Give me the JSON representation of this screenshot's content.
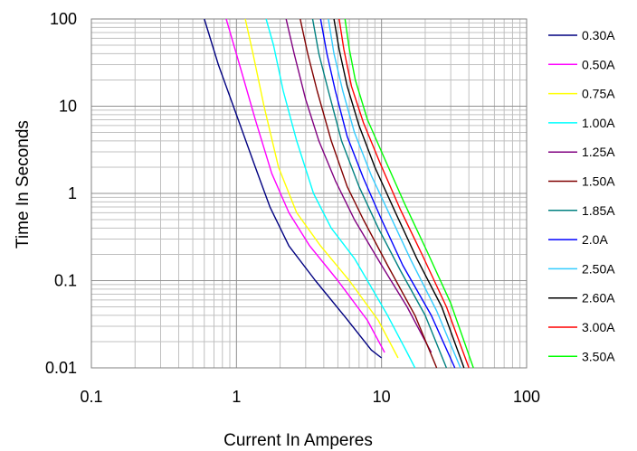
{
  "chart_data": {
    "type": "line",
    "title": "",
    "xlabel": "Current In Amperes",
    "ylabel": "Time In Seconds",
    "x_scale": "log",
    "y_scale": "log",
    "xlim": [
      0.1,
      100
    ],
    "ylim": [
      0.01,
      100
    ],
    "grid": true,
    "legend_position": "right",
    "x_ticks": [
      {
        "value": 0.1,
        "label": "0.1"
      },
      {
        "value": 1,
        "label": "1"
      },
      {
        "value": 10,
        "label": "10"
      },
      {
        "value": 100,
        "label": "100"
      }
    ],
    "y_ticks": [
      {
        "value": 100,
        "label": "100"
      },
      {
        "value": 10,
        "label": "10"
      },
      {
        "value": 1,
        "label": "1"
      },
      {
        "value": 0.1,
        "label": "0.1"
      },
      {
        "value": 0.01,
        "label": "0.01"
      }
    ],
    "series": [
      {
        "name": "0.30A",
        "color": "#000080",
        "points": [
          [
            0.6,
            100
          ],
          [
            0.75,
            30
          ],
          [
            1.0,
            8
          ],
          [
            1.35,
            2
          ],
          [
            1.7,
            0.7
          ],
          [
            2.3,
            0.25
          ],
          [
            3.5,
            0.1
          ],
          [
            5.5,
            0.04
          ],
          [
            8.5,
            0.016
          ],
          [
            10,
            0.013
          ]
        ]
      },
      {
        "name": "0.50A",
        "color": "#FF00FF",
        "points": [
          [
            0.85,
            100
          ],
          [
            1.05,
            30
          ],
          [
            1.35,
            7
          ],
          [
            1.75,
            1.7
          ],
          [
            2.3,
            0.6
          ],
          [
            3.2,
            0.25
          ],
          [
            5,
            0.1
          ],
          [
            8,
            0.035
          ],
          [
            10.5,
            0.015
          ]
        ]
      },
      {
        "name": "0.75A",
        "color": "#FFFF00",
        "points": [
          [
            1.15,
            100
          ],
          [
            1.3,
            40
          ],
          [
            1.55,
            10
          ],
          [
            1.95,
            2
          ],
          [
            2.6,
            0.6
          ],
          [
            3.8,
            0.25
          ],
          [
            6,
            0.1
          ],
          [
            9.5,
            0.035
          ],
          [
            13,
            0.013
          ]
        ]
      },
      {
        "name": "1.00A",
        "color": "#00FFFF",
        "points": [
          [
            1.6,
            100
          ],
          [
            1.8,
            50
          ],
          [
            2.1,
            15
          ],
          [
            2.6,
            4
          ],
          [
            3.4,
            1
          ],
          [
            4.5,
            0.4
          ],
          [
            6.5,
            0.18
          ],
          [
            8,
            0.1
          ],
          [
            11,
            0.04
          ],
          [
            15,
            0.015
          ],
          [
            17,
            0.01
          ]
        ]
      },
      {
        "name": "1.25A",
        "color": "#800080",
        "points": [
          [
            2.2,
            100
          ],
          [
            2.5,
            40
          ],
          [
            3.0,
            12
          ],
          [
            3.7,
            4
          ],
          [
            4.8,
            1.4
          ],
          [
            6.5,
            0.5
          ],
          [
            10,
            0.15
          ],
          [
            15,
            0.05
          ],
          [
            22,
            0.015
          ]
        ]
      },
      {
        "name": "1.50A",
        "color": "#800000",
        "points": [
          [
            2.75,
            100
          ],
          [
            3.1,
            40
          ],
          [
            3.6,
            15
          ],
          [
            4.5,
            4
          ],
          [
            5.8,
            1.2
          ],
          [
            7.5,
            0.5
          ],
          [
            11,
            0.15
          ],
          [
            17,
            0.04
          ],
          [
            24,
            0.01
          ]
        ]
      },
      {
        "name": "1.85A",
        "color": "#008080",
        "points": [
          [
            3.35,
            100
          ],
          [
            3.7,
            40
          ],
          [
            4.3,
            15
          ],
          [
            5.3,
            4
          ],
          [
            7,
            1.2
          ],
          [
            9.5,
            0.4
          ],
          [
            13.5,
            0.13
          ],
          [
            20,
            0.04
          ],
          [
            28,
            0.01
          ]
        ]
      },
      {
        "name": "2.0A",
        "color": "#0000FF",
        "points": [
          [
            3.8,
            100
          ],
          [
            4.2,
            40
          ],
          [
            4.8,
            15
          ],
          [
            5.8,
            4.5
          ],
          [
            7.5,
            1.5
          ],
          [
            10,
            0.5
          ],
          [
            14,
            0.15
          ],
          [
            22,
            0.04
          ],
          [
            32,
            0.01
          ]
        ]
      },
      {
        "name": "2.50A",
        "color": "#33CCFF",
        "points": [
          [
            4.3,
            100
          ],
          [
            4.7,
            40
          ],
          [
            5.4,
            15
          ],
          [
            6.5,
            5
          ],
          [
            8.5,
            1.6
          ],
          [
            11.5,
            0.55
          ],
          [
            16,
            0.17
          ],
          [
            24,
            0.045
          ],
          [
            35,
            0.01
          ]
        ]
      },
      {
        "name": "2.60A",
        "color": "#000000",
        "points": [
          [
            4.7,
            100
          ],
          [
            5.1,
            45
          ],
          [
            5.8,
            17
          ],
          [
            7,
            6
          ],
          [
            9,
            2
          ],
          [
            12.5,
            0.6
          ],
          [
            17.5,
            0.18
          ],
          [
            26,
            0.05
          ],
          [
            37,
            0.01
          ]
        ]
      },
      {
        "name": "3.00A",
        "color": "#FF0000",
        "points": [
          [
            5.1,
            100
          ],
          [
            5.5,
            45
          ],
          [
            6.2,
            17
          ],
          [
            7.5,
            6.5
          ],
          [
            9.8,
            2.2
          ],
          [
            13.5,
            0.65
          ],
          [
            19,
            0.2
          ],
          [
            28,
            0.05
          ],
          [
            40,
            0.01
          ]
        ]
      },
      {
        "name": "3.50A",
        "color": "#00FF00",
        "points": [
          [
            5.6,
            100
          ],
          [
            6.0,
            45
          ],
          [
            6.6,
            20
          ],
          [
            8,
            7
          ],
          [
            10.5,
            2.5
          ],
          [
            14.5,
            0.75
          ],
          [
            20.5,
            0.22
          ],
          [
            30,
            0.055
          ],
          [
            43,
            0.01
          ]
        ]
      }
    ]
  }
}
